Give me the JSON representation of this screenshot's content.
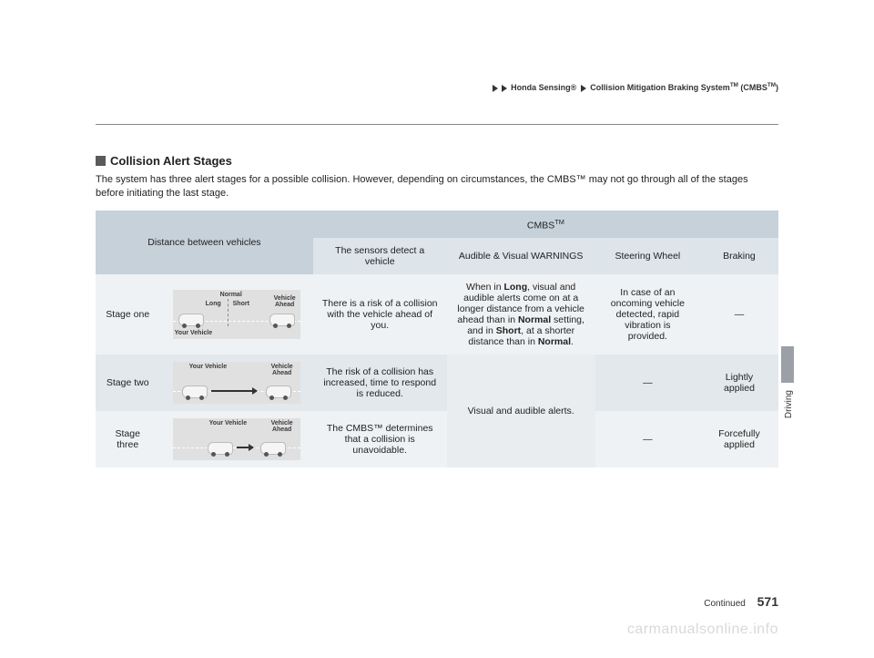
{
  "colors": {
    "header_row1": "#c6d1da",
    "header_row2": "#dde4ea",
    "body_rowA": "#eff2f4",
    "body_rowB": "#e3e8ec",
    "diagram_bg": "#e0e0e0",
    "section_square": "#5a5a5a",
    "side_tab": "#9aa0a6",
    "watermark": "#d9d9d9"
  },
  "breadcrumb": {
    "seg1": "Honda Sensing®",
    "seg2": "Collision Mitigation Braking System",
    "seg2_tm": "TM",
    "seg2_suffix": " (CMBS",
    "seg2_suffix_tm": "TM",
    "seg2_close": ")"
  },
  "section_title": "Collision Alert Stages",
  "intro": "The system has three alert stages for a possible collision. However, depending on circumstances, the CMBS™ may not go through all of the stages before initiating the last stage.",
  "table": {
    "col_distance": "Distance between vehicles",
    "col_cmbs": "CMBS",
    "col_cmbs_tm": "TM",
    "col_sensors": "The sensors detect a vehicle",
    "col_warnings": "Audible & Visual WARNINGS",
    "col_steering": "Steering Wheel",
    "col_braking": "Braking",
    "rows": [
      {
        "stage": "Stage one",
        "diagram": {
          "label_normal": "Normal",
          "label_long": "Long",
          "label_short": "Short",
          "label_your": "Your Vehicle",
          "label_ahead": "Vehicle Ahead"
        },
        "sensors": "There is a risk of a collision with the vehicle ahead of you.",
        "warnings_html": "When in <b>Long</b>, visual and audible alerts come on at a longer distance from a vehicle ahead than in <b>Normal</b> setting, and in <b>Short</b>, at a shorter distance than in <b>Normal</b>.",
        "steering": "In case of an oncoming vehicle detected, rapid vibration is provided.",
        "braking": "—"
      },
      {
        "stage": "Stage two",
        "diagram": {
          "label_your": "Your Vehicle",
          "label_ahead": "Vehicle Ahead"
        },
        "sensors": "The risk of a collision has increased, time to respond is reduced.",
        "warnings": "Visual and audible alerts.",
        "steering": "—",
        "braking": "Lightly applied"
      },
      {
        "stage": "Stage three",
        "diagram": {
          "label_your": "Your Vehicle",
          "label_ahead": "Vehicle Ahead"
        },
        "sensors": "The CMBS™ determines that a collision is unavoidable.",
        "steering": "—",
        "braking": "Forcefully applied"
      }
    ]
  },
  "side_label": "Driving",
  "footer": {
    "continued": "Continued",
    "page": "571"
  },
  "watermark": "carmanualsonline.info"
}
